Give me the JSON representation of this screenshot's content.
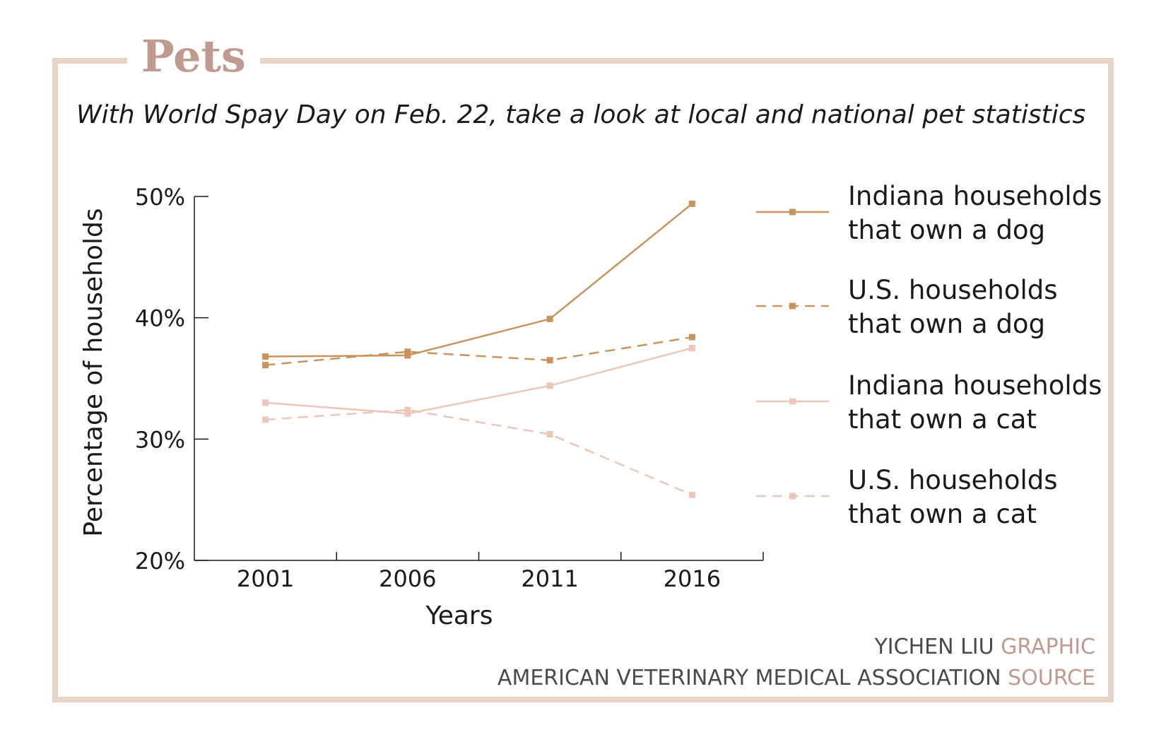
{
  "header": {
    "title": "Pets",
    "subtitle": "With World Spay Day on Feb. 22, take a look at local and national pet statistics"
  },
  "colors": {
    "frame": "#e8d3c7",
    "title": "#c09a8e",
    "dog": "#c8935c",
    "cat": "#ecc6b6"
  },
  "chart_data": {
    "type": "line",
    "x": [
      "2001",
      "2006",
      "2011",
      "2016"
    ],
    "xlabel": "Years",
    "ylabel": "Percentage of households",
    "ylim": [
      20,
      50
    ],
    "yticks": [
      "20%",
      "30%",
      "40%",
      "50%"
    ],
    "grid": false,
    "legend_position": "right",
    "series": [
      {
        "name": "Indiana households that own a dog",
        "legend_lines": [
          "Indiana households",
          "that own a dog"
        ],
        "values": [
          36.8,
          36.9,
          39.9,
          49.4
        ],
        "color": "#c8935c",
        "style": "solid"
      },
      {
        "name": "U.S. households that own a dog",
        "legend_lines": [
          "U.S. households",
          "that own a dog"
        ],
        "values": [
          36.1,
          37.2,
          36.5,
          38.4
        ],
        "color": "#c8935c",
        "style": "dashed"
      },
      {
        "name": "Indiana households that own a cat",
        "legend_lines": [
          "Indiana households",
          "that own a cat"
        ],
        "values": [
          33.0,
          32.1,
          34.4,
          37.5
        ],
        "color": "#ecc6b6",
        "style": "solid"
      },
      {
        "name": "U.S. households that own a cat",
        "legend_lines": [
          "U.S. households",
          "that own a cat"
        ],
        "values": [
          31.6,
          32.4,
          30.4,
          25.4
        ],
        "color": "#ecc6b6",
        "style": "dashed"
      }
    ]
  },
  "credits": {
    "author": "YICHEN LIU",
    "author_tag": "GRAPHIC",
    "source": "AMERICAN VETERINARY MEDICAL ASSOCIATION",
    "source_tag": "SOURCE"
  }
}
